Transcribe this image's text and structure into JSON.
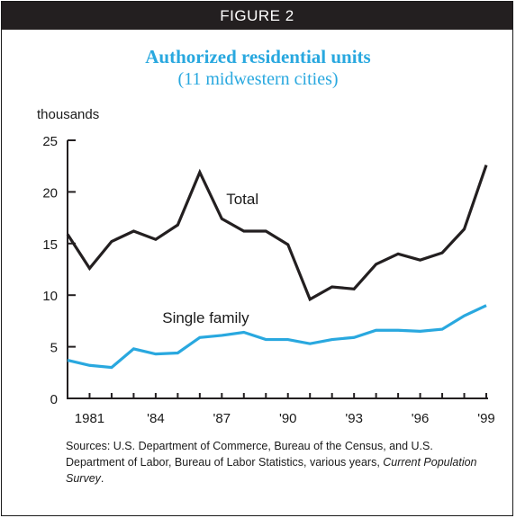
{
  "header": {
    "label": "FIGURE 2"
  },
  "chart_data": {
    "type": "line",
    "title": "Authorized residential units",
    "subtitle": "(11 midwestern cities)",
    "ylabel": "thousands",
    "xlabel": "",
    "ylim": [
      0,
      25
    ],
    "xlim": [
      1980,
      1999
    ],
    "grid": false,
    "y_ticks": [
      0,
      5,
      10,
      15,
      20,
      25
    ],
    "x_ticks": [
      {
        "value": 1981,
        "label": "1981"
      },
      {
        "value": 1984,
        "label": "'84"
      },
      {
        "value": 1987,
        "label": "'87"
      },
      {
        "value": 1990,
        "label": "'90"
      },
      {
        "value": 1993,
        "label": "'93"
      },
      {
        "value": 1996,
        "label": "'96"
      },
      {
        "value": 1999,
        "label": "'99"
      }
    ],
    "x": [
      1980,
      1981,
      1982,
      1983,
      1984,
      1985,
      1986,
      1987,
      1988,
      1989,
      1990,
      1991,
      1992,
      1993,
      1994,
      1995,
      1996,
      1997,
      1998,
      1999
    ],
    "series": [
      {
        "name": "Total",
        "color": "#231f20",
        "values": [
          15.9,
          12.6,
          15.2,
          16.2,
          15.4,
          16.8,
          21.9,
          17.4,
          16.2,
          16.2,
          14.9,
          9.6,
          10.8,
          10.6,
          13.0,
          14.0,
          13.4,
          14.1,
          16.4,
          22.6
        ]
      },
      {
        "name": "Single family",
        "color": "#29a8df",
        "values": [
          3.7,
          3.2,
          3.0,
          4.8,
          4.3,
          4.4,
          5.9,
          6.1,
          6.4,
          5.7,
          5.7,
          5.3,
          5.7,
          5.9,
          6.6,
          6.6,
          6.5,
          6.7,
          8.0,
          9.0
        ]
      }
    ]
  },
  "sources": {
    "prefix": "Sources: U.S. Department of Commerce, Bureau of the Census, and U.S. Department of Labor, Bureau of Labor Statistics, various years, ",
    "publication": "Current Population Survey",
    "suffix": "."
  }
}
